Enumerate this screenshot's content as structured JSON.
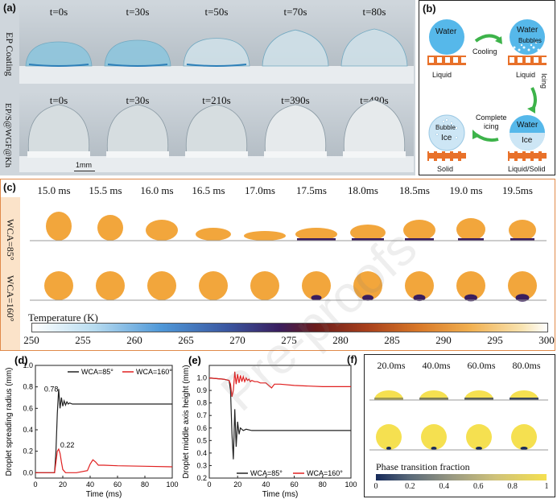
{
  "panel_a": {
    "label": "(a)",
    "row1_label": "EP Coating",
    "row2_label": "EP/S@WGF@Kh",
    "row1_times": [
      "t=0s",
      "t=30s",
      "t=50s",
      "t=70s",
      "t=80s"
    ],
    "row2_times": [
      "t=0s",
      "t=30s",
      "t=210s",
      "t=390s",
      "t=480s"
    ],
    "scale_bar": "1mm"
  },
  "panel_b": {
    "label": "(b)",
    "water1": "Water",
    "liquid1": "Liquid",
    "cooling": "Cooling",
    "water2": "Water",
    "bubbles": "Bubbles",
    "liquid2": "Liquid",
    "icing": "Icing",
    "complete_icing_line1": "Complete",
    "complete_icing_line2": "icing",
    "water3": "Water",
    "ice3": "Ice",
    "liquid_solid": "Liquid/Solid",
    "bubble4": "Bubble",
    "ice4": "Ice",
    "solid": "Solid",
    "colors": {
      "water": "#56b8ea",
      "ice": "#cde6f5",
      "substrate": "#e8712a",
      "arrow": "#3db34a"
    }
  },
  "panel_c": {
    "label": "(c)",
    "times": [
      "15.0 ms",
      "15.5 ms",
      "16.0 ms",
      "16.5 ms",
      "17.0ms",
      "17.5ms",
      "18.0ms",
      "18.5ms",
      "19.0 ms",
      "19.5ms"
    ],
    "row1_label": "WCA=85°",
    "row2_label": "WCA=160°",
    "colorbar_title": "Temperature (K)",
    "colorbar_ticks": [
      "250",
      "255",
      "260",
      "265",
      "270",
      "275",
      "280",
      "285",
      "290",
      "295",
      "300"
    ],
    "colors": {
      "droplet": "#f2a63c",
      "cold": "#3a1e5e"
    }
  },
  "panel_f": {
    "label": "(f)",
    "times": [
      "20.0ms",
      "40.0ms",
      "60.0ms",
      "80.0ms"
    ],
    "colorbar_title": "Phase transition fraction",
    "colorbar_ticks": [
      "0",
      "0.2",
      "0.4",
      "0.6",
      "0.8",
      "1"
    ],
    "colors": {
      "droplet": "#f5e050",
      "solid": "#1a2a5a"
    }
  },
  "watermark": "Pre-proofs",
  "chart_data": [
    {
      "type": "line",
      "panel": "(d)",
      "xlabel": "Time (ms)",
      "ylabel": "Droplet spreading radius (mm)",
      "xlim": [
        0,
        100
      ],
      "ylim": [
        -0.05,
        1.0
      ],
      "xticks": [
        0,
        20,
        40,
        60,
        80,
        100
      ],
      "yticks": [
        0.0,
        0.2,
        0.4,
        0.6,
        0.8,
        1.0
      ],
      "legend_position": "top",
      "annotations": [
        {
          "text": "0.78",
          "x": 17,
          "y": 0.78
        },
        {
          "text": "0.22",
          "x": 17,
          "y": 0.22
        }
      ],
      "series": [
        {
          "name": "WCA=85°",
          "color": "#222222",
          "x": [
            0,
            14,
            15,
            16,
            17,
            18,
            19,
            20,
            21,
            22,
            23,
            24,
            25,
            27,
            30,
            40,
            60,
            80,
            100
          ],
          "y": [
            0,
            0,
            0.2,
            0.55,
            0.78,
            0.6,
            0.7,
            0.62,
            0.67,
            0.63,
            0.66,
            0.64,
            0.65,
            0.64,
            0.64,
            0.64,
            0.64,
            0.64,
            0.64
          ]
        },
        {
          "name": "WCA=160°",
          "color": "#e02020",
          "x": [
            0,
            14,
            15,
            16,
            17,
            18,
            19,
            20,
            22,
            25,
            30,
            38,
            40,
            42,
            44,
            46,
            50,
            60,
            80,
            100
          ],
          "y": [
            0,
            0,
            0.1,
            0.2,
            0.22,
            0.18,
            0.1,
            0.03,
            0.0,
            0.0,
            0.0,
            0.02,
            0.08,
            0.12,
            0.1,
            0.07,
            0.07,
            0.065,
            0.06,
            0.055
          ]
        }
      ]
    },
    {
      "type": "line",
      "panel": "(e)",
      "xlabel": "Time (ms)",
      "ylabel": "Droplet middle axis height (mm)",
      "xlim": [
        0,
        100
      ],
      "ylim": [
        0.2,
        1.1
      ],
      "xticks": [
        0,
        20,
        40,
        60,
        80,
        100
      ],
      "yticks": [
        0.2,
        0.3,
        0.4,
        0.5,
        0.6,
        0.7,
        0.8,
        0.9,
        1.0
      ],
      "legend_position": "bottom",
      "series": [
        {
          "name": "WCA=85°",
          "color": "#222222",
          "x": [
            0,
            10,
            14,
            15,
            16,
            17,
            18,
            19,
            20,
            21,
            22,
            24,
            26,
            30,
            40,
            60,
            80,
            100
          ],
          "y": [
            1.0,
            0.99,
            0.98,
            0.9,
            0.55,
            0.35,
            0.75,
            0.45,
            0.65,
            0.55,
            0.6,
            0.58,
            0.59,
            0.58,
            0.58,
            0.58,
            0.58,
            0.58
          ]
        },
        {
          "name": "WCA=160°",
          "color": "#e02020",
          "x": [
            0,
            10,
            14,
            15,
            16,
            17,
            18,
            19,
            20,
            21,
            22,
            23,
            24,
            25,
            26,
            27,
            28,
            29,
            30,
            32,
            34,
            36,
            40,
            44,
            46,
            50,
            60,
            80,
            100
          ],
          "y": [
            1.0,
            0.99,
            0.98,
            0.95,
            0.85,
            0.9,
            1.05,
            0.95,
            1.03,
            0.96,
            1.02,
            0.97,
            1.01,
            0.97,
            1.0,
            0.98,
            0.99,
            0.97,
            0.98,
            0.97,
            0.97,
            0.96,
            0.96,
            0.92,
            0.95,
            0.95,
            0.94,
            0.93,
            0.93
          ]
        }
      ]
    }
  ]
}
